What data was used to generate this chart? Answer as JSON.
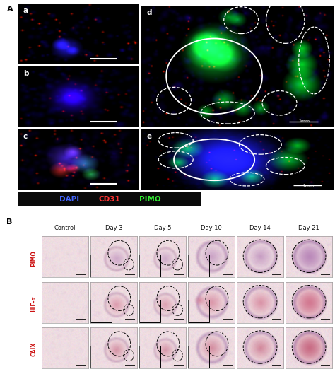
{
  "panel_A_label": "A",
  "panel_B_label": "B",
  "sub_labels_left": [
    "a",
    "b",
    "c"
  ],
  "sub_labels_right": [
    "d",
    "e"
  ],
  "legend_items": [
    {
      "label": "DAPI",
      "color": "#4466ff"
    },
    {
      "label": "CD31",
      "color": "#ff3333"
    },
    {
      "label": "PIMO",
      "color": "#33ee33"
    }
  ],
  "legend_bg": "#0a0a0a",
  "row_labels": [
    "PIMO",
    "HIF-α",
    "CAIX"
  ],
  "col_labels": [
    "Control",
    "Day 3",
    "Day 5",
    "Day 10",
    "Day 14",
    "Day 21"
  ],
  "row_label_color": "#cc1111",
  "scalebar_color_white": "#ffffff",
  "scalebar_color_black": "#111111",
  "bg_dark": "#050510",
  "fig_bg": "#ffffff"
}
